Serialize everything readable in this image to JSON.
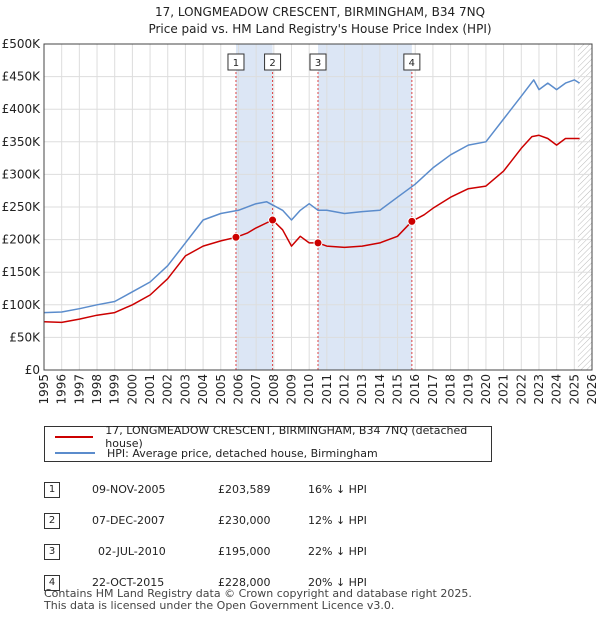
{
  "colors": {
    "price_line": "#cc0000",
    "hpi_line": "#5b8ccc",
    "shade": "#dce6f5",
    "marker_vline": "#dd4444",
    "grid": "#dddddd"
  },
  "chart_data": {
    "type": "line",
    "title": "17, LONGMEADOW CRESCENT, BIRMINGHAM, B34 7NQ",
    "subtitle": "Price paid vs. HM Land Registry's House Price Index (HPI)",
    "xlim": [
      1995,
      2026
    ],
    "ylim": [
      0,
      500000
    ],
    "y_ticks": [
      {
        "value": 0,
        "label": "£0"
      },
      {
        "value": 50000,
        "label": "£50K"
      },
      {
        "value": 100000,
        "label": "£100K"
      },
      {
        "value": 150000,
        "label": "£150K"
      },
      {
        "value": 200000,
        "label": "£200K"
      },
      {
        "value": 250000,
        "label": "£250K"
      },
      {
        "value": 300000,
        "label": "£300K"
      },
      {
        "value": 350000,
        "label": "£350K"
      },
      {
        "value": 400000,
        "label": "£400K"
      },
      {
        "value": 450000,
        "label": "£450K"
      },
      {
        "value": 500000,
        "label": "£500K"
      }
    ],
    "x_ticks": [
      "1995",
      "1996",
      "1997",
      "1998",
      "1999",
      "2000",
      "2001",
      "2002",
      "2003",
      "2004",
      "2005",
      "2006",
      "2007",
      "2008",
      "2009",
      "2010",
      "2011",
      "2012",
      "2013",
      "2014",
      "2015",
      "2016",
      "2017",
      "2018",
      "2019",
      "2020",
      "2021",
      "2022",
      "2023",
      "2024",
      "2025",
      "2026"
    ],
    "shaded_spans": [
      [
        2005.86,
        2007.93
      ],
      [
        2010.5,
        2015.81
      ]
    ],
    "hatch_start": 2025.2,
    "series": [
      {
        "name": "17, LONGMEADOW CRESCENT, BIRMINGHAM, B34 7NQ (detached house)",
        "x": [
          1995,
          1996,
          1997,
          1998,
          1999,
          2000,
          2001,
          2002,
          2003,
          2004,
          2005,
          2005.86,
          2006.5,
          2007,
          2007.93,
          2008.5,
          2009,
          2009.5,
          2010,
          2010.5,
          2011,
          2012,
          2013,
          2014,
          2015,
          2015.81,
          2016.5,
          2017,
          2018,
          2019,
          2020,
          2021,
          2022,
          2022.6,
          2023,
          2023.5,
          2024,
          2024.5,
          2025,
          2025.3
        ],
        "y": [
          74000,
          73000,
          78000,
          84000,
          88000,
          100000,
          115000,
          140000,
          175000,
          190000,
          198000,
          203589,
          210000,
          218000,
          230000,
          215000,
          190000,
          205000,
          195000,
          195000,
          190000,
          188000,
          190000,
          195000,
          205000,
          228000,
          238000,
          248000,
          265000,
          278000,
          282000,
          305000,
          340000,
          358000,
          360000,
          355000,
          345000,
          355000,
          355000,
          355000
        ]
      },
      {
        "name": "HPI: Average price, detached house, Birmingham",
        "x": [
          1995,
          1996,
          1997,
          1998,
          1999,
          2000,
          2001,
          2002,
          2003,
          2004,
          2005,
          2006,
          2007,
          2007.6,
          2008.5,
          2009,
          2009.5,
          2010,
          2010.5,
          2011,
          2012,
          2013,
          2014,
          2015,
          2016,
          2017,
          2018,
          2019,
          2020,
          2021,
          2022,
          2022.7,
          2023,
          2023.5,
          2024,
          2024.5,
          2025,
          2025.3
        ],
        "y": [
          88000,
          89000,
          94000,
          100000,
          105000,
          120000,
          135000,
          160000,
          195000,
          230000,
          240000,
          245000,
          255000,
          258000,
          245000,
          230000,
          245000,
          255000,
          245000,
          245000,
          240000,
          243000,
          245000,
          265000,
          285000,
          310000,
          330000,
          345000,
          350000,
          385000,
          420000,
          445000,
          430000,
          440000,
          430000,
          440000,
          445000,
          440000
        ]
      }
    ],
    "sales": [
      {
        "id": "1",
        "x": 2005.86,
        "y": 203589
      },
      {
        "id": "2",
        "x": 2007.93,
        "y": 230000
      },
      {
        "id": "3",
        "x": 2010.5,
        "y": 195000
      },
      {
        "id": "4",
        "x": 2015.81,
        "y": 228000
      }
    ]
  },
  "legend": {
    "price_label": "17, LONGMEADOW CRESCENT, BIRMINGHAM, B34 7NQ (detached house)",
    "hpi_label": "HPI: Average price, detached house, Birmingham"
  },
  "sales_table": [
    {
      "num": "1",
      "date": "09-NOV-2005",
      "price": "£203,589",
      "diff": "16% ↓ HPI"
    },
    {
      "num": "2",
      "date": "07-DEC-2007",
      "price": "£230,000",
      "diff": "12% ↓ HPI"
    },
    {
      "num": "3",
      "date": "02-JUL-2010",
      "price": "£195,000",
      "diff": "22% ↓ HPI"
    },
    {
      "num": "4",
      "date": "22-OCT-2015",
      "price": "£228,000",
      "diff": "20% ↓ HPI"
    }
  ],
  "footer": {
    "line1": "Contains HM Land Registry data © Crown copyright and database right 2025.",
    "line2": "This data is licensed under the Open Government Licence v3.0."
  }
}
